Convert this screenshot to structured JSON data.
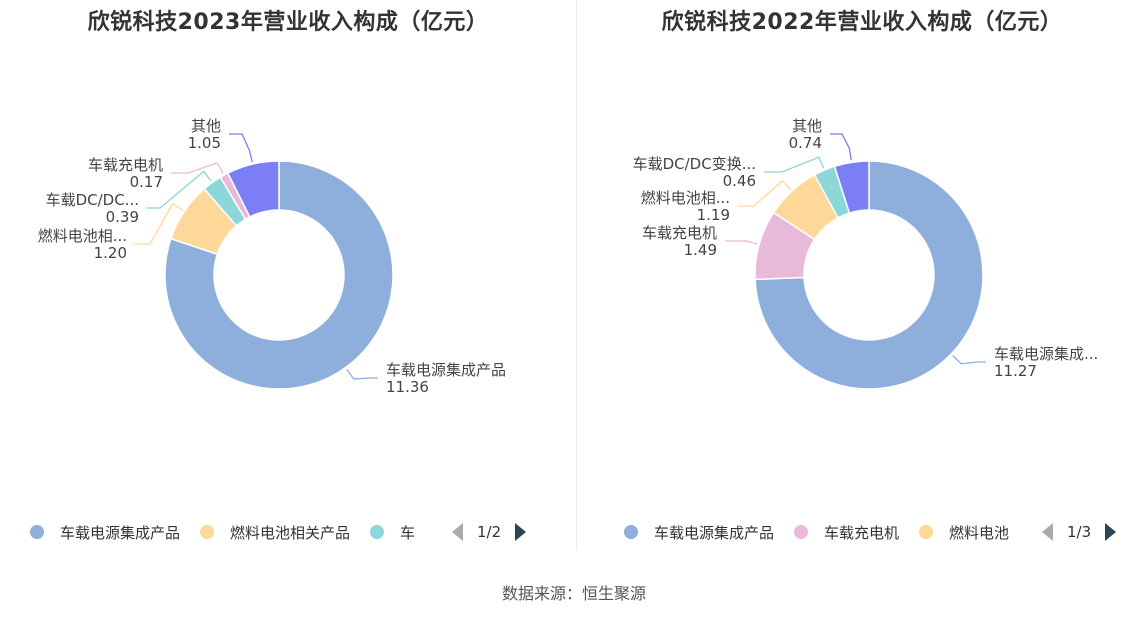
{
  "source_label": "数据来源：恒生聚源",
  "chart_data": [
    {
      "type": "pie",
      "variant": "donut",
      "title": "欣锐科技2023年营业收入构成（亿元）",
      "slices": [
        {
          "name": "车载电源集成产品",
          "label": "车载电源集成产品",
          "value": 11.36,
          "value_text": "11.36",
          "color": "#8eaedb"
        },
        {
          "name": "燃料电池相关产品",
          "label": "燃料电池相...",
          "value": 1.2,
          "value_text": "1.20",
          "color": "#fdd898"
        },
        {
          "name": "车载DC/DC变换器",
          "label": "车载DC/DC...",
          "value": 0.39,
          "value_text": "0.39",
          "color": "#8cd7d7"
        },
        {
          "name": "车载充电机",
          "label": "车载充电机",
          "value": 0.17,
          "value_text": "0.17",
          "color": "#e8b9d9"
        },
        {
          "name": "其他",
          "label": "其他",
          "value": 1.05,
          "value_text": "1.05",
          "color": "#7b7ef5"
        }
      ],
      "legend": {
        "items": [
          {
            "label": "车载电源集成产品",
            "color": "#8eaedb"
          },
          {
            "label": "燃料电池相关产品",
            "color": "#fdd898"
          },
          {
            "label": "车",
            "color": "#8cd7d7"
          }
        ],
        "page": "1/2"
      }
    },
    {
      "type": "pie",
      "variant": "donut",
      "title": "欣锐科技2022年营业收入构成（亿元）",
      "slices": [
        {
          "name": "车载电源集成产品",
          "label": "车载电源集成...",
          "value": 11.27,
          "value_text": "11.27",
          "color": "#8eaedb"
        },
        {
          "name": "车载充电机",
          "label": "车载充电机",
          "value": 1.49,
          "value_text": "1.49",
          "color": "#e8b9d9"
        },
        {
          "name": "燃料电池相关产品",
          "label": "燃料电池相...",
          "value": 1.19,
          "value_text": "1.19",
          "color": "#fdd898"
        },
        {
          "name": "车载DC/DC变换器",
          "label": "车载DC/DC变换...",
          "value": 0.46,
          "value_text": "0.46",
          "color": "#8cd7d7"
        },
        {
          "name": "其他",
          "label": "其他",
          "value": 0.74,
          "value_text": "0.74",
          "color": "#7b7ef5"
        }
      ],
      "legend": {
        "items": [
          {
            "label": "车载电源集成产品",
            "color": "#8eaedb"
          },
          {
            "label": "车载充电机",
            "color": "#e8b9d9"
          },
          {
            "label": "燃料电池",
            "color": "#fdd898"
          }
        ],
        "page": "1/3"
      }
    }
  ]
}
